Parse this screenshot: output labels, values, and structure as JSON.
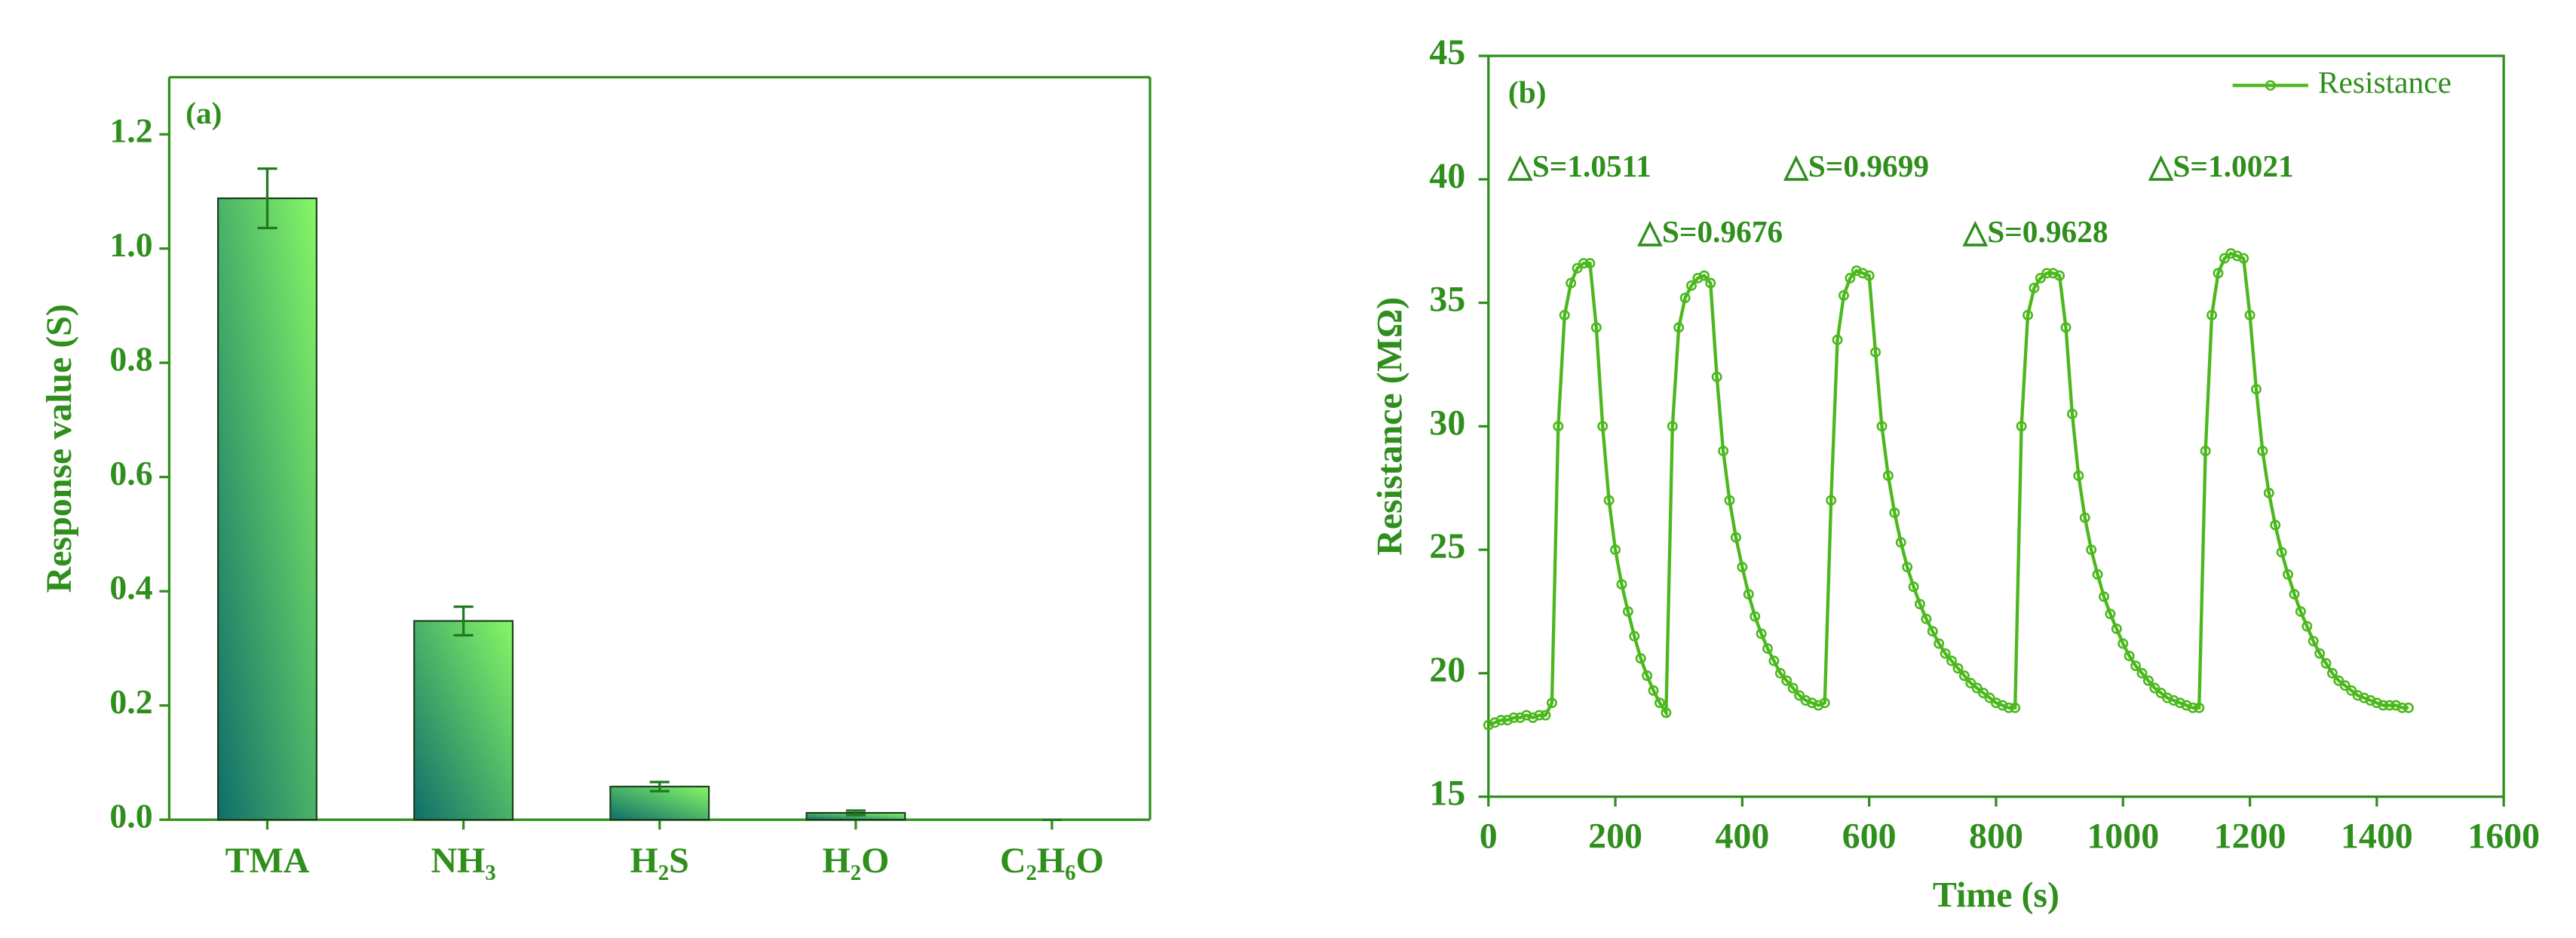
{
  "chart_data": [
    {
      "type": "bar",
      "title": "(a)",
      "y_label": "Response value (S)",
      "categories": [
        "TMA",
        "NH₃",
        "H₂S",
        "H₂O",
        "C₂H₆O"
      ],
      "values": [
        1.088,
        0.348,
        0.058,
        0.012,
        0
      ],
      "errors": [
        0.052,
        0.025,
        0.008,
        0.004,
        0
      ],
      "colors": [
        "#86f766",
        "#0f6e6a"
      ],
      "ylim": [
        0,
        1.3
      ],
      "yticks": [
        {
          "value": 0,
          "label": "0.0"
        },
        0.2,
        0.4,
        0.6,
        0.8,
        {
          "value": 1,
          "label": "1.0"
        },
        1.2
      ]
    },
    {
      "type": "line",
      "title": "(b)",
      "x_label": "Time (s)",
      "y_label": "Resistance (MΩ)",
      "legend": "top-right",
      "annotations": [
        "△S=1.0511",
        "△S=0.9676",
        "△S=0.9699",
        "△S=0.9628",
        "△S=1.0021"
      ],
      "x": [
        0,
        10,
        20,
        30,
        40,
        50,
        60,
        70,
        80,
        90,
        100,
        110,
        120,
        130,
        140,
        150,
        160,
        170,
        180,
        190,
        200,
        210,
        220,
        230,
        240,
        250,
        260,
        270,
        280,
        290,
        300,
        310,
        320,
        330,
        340,
        350,
        360,
        370,
        380,
        390,
        400,
        410,
        420,
        430,
        440,
        450,
        460,
        470,
        480,
        490,
        500,
        510,
        520,
        530,
        540,
        550,
        560,
        570,
        580,
        590,
        600,
        610,
        620,
        630,
        640,
        650,
        660,
        670,
        680,
        690,
        700,
        710,
        720,
        730,
        740,
        750,
        760,
        770,
        780,
        790,
        800,
        810,
        820,
        830,
        840,
        850,
        860,
        870,
        880,
        890,
        900,
        910,
        920,
        930,
        940,
        950,
        960,
        970,
        980,
        990,
        1000,
        1010,
        1020,
        1030,
        1040,
        1050,
        1060,
        1070,
        1080,
        1090,
        1100,
        1110,
        1120,
        1130,
        1140,
        1150,
        1160,
        1170,
        1180,
        1190,
        1200,
        1210,
        1220,
        1230,
        1240,
        1250,
        1260,
        1270,
        1280,
        1290,
        1300,
        1310,
        1320,
        1330,
        1340,
        1350,
        1360,
        1370,
        1380,
        1390,
        1400,
        1410,
        1420,
        1430,
        1440,
        1450
      ],
      "series": [
        {
          "name": "Resistance",
          "color": "#4cb81e",
          "values": [
            17.9,
            18.0,
            18.1,
            18.1,
            18.2,
            18.2,
            18.3,
            18.2,
            18.3,
            18.3,
            18.8,
            30.0,
            34.5,
            35.8,
            36.4,
            36.6,
            36.6,
            34.0,
            30.0,
            27.0,
            25.0,
            23.6,
            22.5,
            21.5,
            20.6,
            19.9,
            19.3,
            18.8,
            18.4,
            30.0,
            34.0,
            35.2,
            35.7,
            36.0,
            36.1,
            35.8,
            32.0,
            29.0,
            27.0,
            25.5,
            24.3,
            23.2,
            22.3,
            21.6,
            21.0,
            20.5,
            20.0,
            19.7,
            19.4,
            19.1,
            18.9,
            18.8,
            18.7,
            18.8,
            27.0,
            33.5,
            35.3,
            36.0,
            36.3,
            36.2,
            36.1,
            33.0,
            30.0,
            28.0,
            26.5,
            25.3,
            24.3,
            23.5,
            22.8,
            22.2,
            21.7,
            21.2,
            20.8,
            20.5,
            20.2,
            19.9,
            19.6,
            19.4,
            19.2,
            19.0,
            18.8,
            18.7,
            18.6,
            18.6,
            30.0,
            34.5,
            35.6,
            36.0,
            36.2,
            36.2,
            36.1,
            34.0,
            30.5,
            28.0,
            26.3,
            25.0,
            24.0,
            23.1,
            22.4,
            21.8,
            21.2,
            20.7,
            20.3,
            20.0,
            19.7,
            19.4,
            19.2,
            19.0,
            18.9,
            18.8,
            18.7,
            18.6,
            18.6,
            29.0,
            34.5,
            36.2,
            36.8,
            37.0,
            36.9,
            36.8,
            34.5,
            31.5,
            29.0,
            27.3,
            26.0,
            24.9,
            24.0,
            23.2,
            22.5,
            21.9,
            21.3,
            20.8,
            20.4,
            20.0,
            19.7,
            19.5,
            19.3,
            19.1,
            19.0,
            18.9,
            18.8,
            18.7,
            18.7,
            18.7,
            18.6,
            18.6
          ]
        }
      ],
      "xlim": [
        0,
        1600
      ],
      "xticks": [
        0,
        200,
        400,
        600,
        800,
        1000,
        1200,
        1400,
        1600
      ],
      "ylim": [
        15,
        45
      ],
      "yticks": [
        15,
        20,
        25,
        30,
        35,
        40,
        45
      ]
    }
  ]
}
